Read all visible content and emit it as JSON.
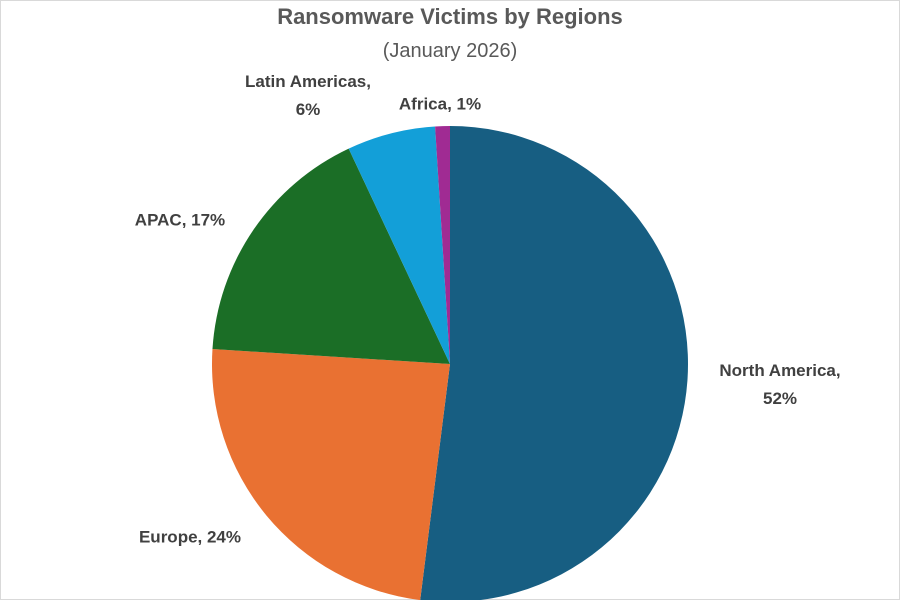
{
  "chart_data": {
    "type": "pie",
    "title": "Ransomware Victims by Regions",
    "subtitle": "(January 2026)",
    "values": [
      52,
      24,
      17,
      6,
      1
    ],
    "value_labels": [
      "North America, 52%",
      "Europe, 24%",
      "APAC, 17%",
      "Latin Americas, 6%",
      "Africa, 1%"
    ],
    "colors": [
      "#175e82",
      "#e97132",
      "#1b6e26",
      "#139fd8",
      "#a02b93"
    ]
  }
}
